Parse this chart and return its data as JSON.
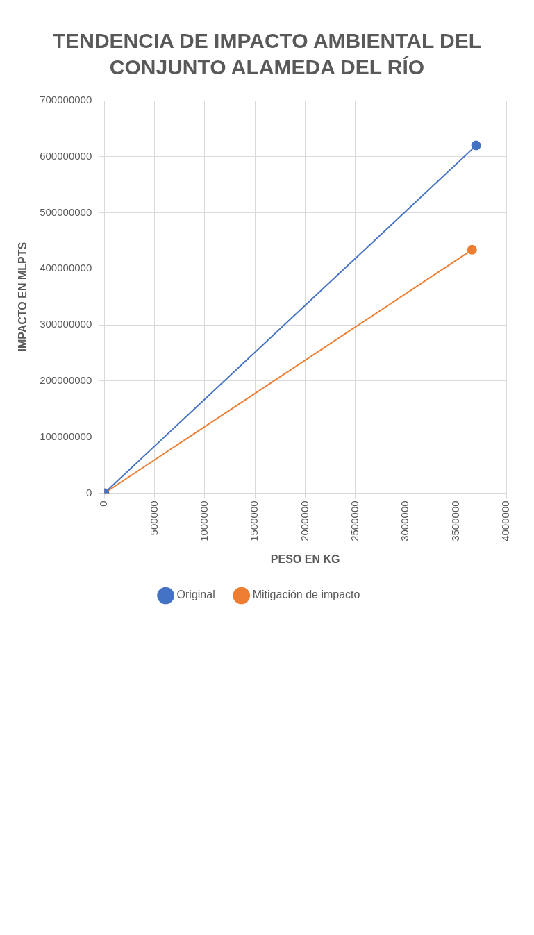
{
  "chart_data": {
    "type": "line",
    "title": "TENDENCIA DE IMPACTO AMBIENTAL DEL CONJUNTO ALAMEDA DEL RÍO",
    "xlabel": "PESO EN KG",
    "ylabel": "IMPACTO EN MLPTS",
    "xlim": [
      0,
      4000000
    ],
    "xticks": [
      0,
      500000,
      1000000,
      1500000,
      2000000,
      2500000,
      3000000,
      3500000,
      4000000
    ],
    "ylim": [
      0,
      700000000
    ],
    "yticks": [
      0,
      100000000,
      200000000,
      300000000,
      400000000,
      500000000,
      600000000,
      700000000
    ],
    "series": [
      {
        "name": "Original",
        "color": "#4472c4",
        "x": [
          0,
          3700000
        ],
        "values": [
          0,
          620000000
        ]
      },
      {
        "name": "Mitigación de impacto",
        "color": "#ed7d31",
        "x": [
          0,
          3660000
        ],
        "values": [
          0,
          434000000
        ]
      }
    ],
    "grid": true,
    "legend": "bottom",
    "marker": "circle",
    "line_style": "solid"
  }
}
